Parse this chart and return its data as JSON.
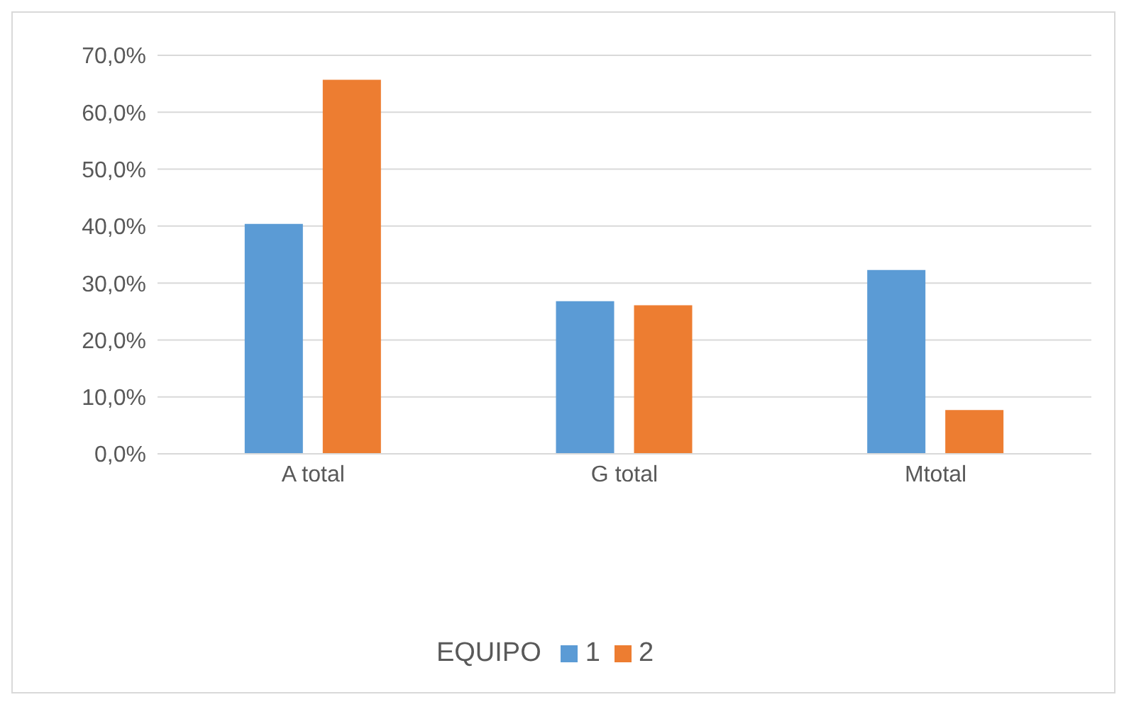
{
  "chart_data": {
    "type": "bar",
    "categories": [
      "A total",
      "G total",
      "Mtotal"
    ],
    "series": [
      {
        "name": "1",
        "color": "#5b9bd5",
        "values": [
          40.4,
          26.8,
          32.3
        ]
      },
      {
        "name": "2",
        "color": "#ed7d31",
        "values": [
          65.7,
          26.1,
          7.7
        ]
      }
    ],
    "ylim": [
      0,
      70
    ],
    "yticks": [
      {
        "value": 0,
        "label": "0,0%"
      },
      {
        "value": 10,
        "label": "10,0%"
      },
      {
        "value": 20,
        "label": "20,0%"
      },
      {
        "value": 30,
        "label": "30,0%"
      },
      {
        "value": 40,
        "label": "40,0%"
      },
      {
        "value": 50,
        "label": "50,0%"
      },
      {
        "value": 60,
        "label": "60,0%"
      },
      {
        "value": 70,
        "label": "70,0%"
      }
    ],
    "grid": "y",
    "legend": "bottom",
    "legend_title": "EQUIPO"
  }
}
